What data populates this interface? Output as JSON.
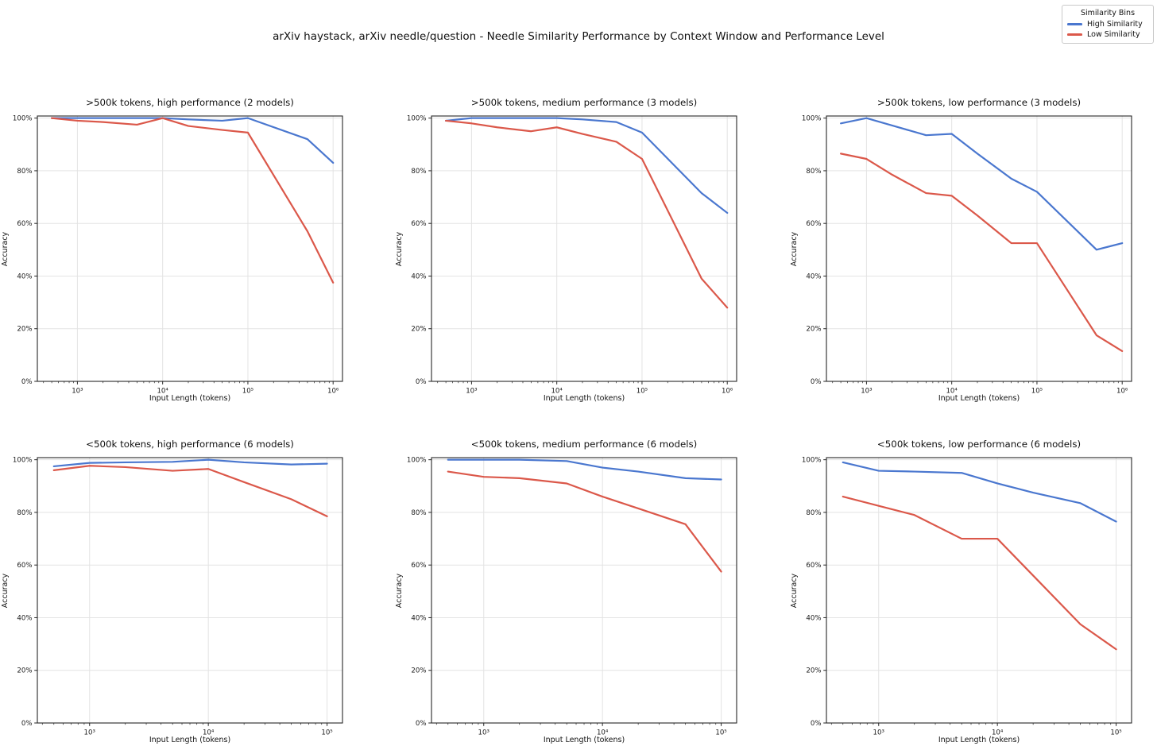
{
  "header": {
    "title": "arXiv haystack, arXiv needle/question - Needle Similarity Performance by Context Window and Performance Level"
  },
  "legend": {
    "title": "Similarity Bins",
    "position": "top-right",
    "entries": [
      {
        "label": "High Similarity",
        "color": "#4A77CF"
      },
      {
        "label": "Low Similarity",
        "color": "#DB584A"
      }
    ]
  },
  "colors": {
    "grid": "#e3e3e3",
    "spine": "#262626",
    "text": "#1a1a1a",
    "series": {
      "High Similarity": "#4A77CF",
      "Low Similarity": "#DB584A"
    }
  },
  "axes": {
    "yticks": [
      {
        "v": 0,
        "label": "0%"
      },
      {
        "v": 20,
        "label": "20%"
      },
      {
        "v": 40,
        "label": "40%"
      },
      {
        "v": 60,
        "label": "60%"
      },
      {
        "v": 80,
        "label": "80%"
      },
      {
        "v": 100,
        "label": "100%"
      }
    ],
    "xtick_sets": {
      "wide": [
        {
          "v": 1000,
          "label": "10³"
        },
        {
          "v": 10000,
          "label": "10⁴"
        },
        {
          "v": 100000,
          "label": "10⁵"
        },
        {
          "v": 1000000,
          "label": "10⁶"
        }
      ],
      "narrow": [
        {
          "v": 1000,
          "label": "10³"
        },
        {
          "v": 10000,
          "label": "10⁴"
        },
        {
          "v": 100000,
          "label": "10⁵"
        }
      ]
    }
  },
  "chart_data": [
    {
      "type": "line",
      "title": ">500k tokens, high performance (2 models)",
      "xlabel": "Input Length (tokens)",
      "ylabel": "Accuracy",
      "x": [
        500,
        1000,
        2000,
        5000,
        10000,
        20000,
        50000,
        100000,
        500000,
        1000000
      ],
      "series": [
        {
          "name": "High Similarity",
          "values": [
            100,
            100,
            100,
            100,
            100,
            99.5,
            99,
            100,
            92,
            83
          ]
        },
        {
          "name": "Low Similarity",
          "values": [
            100,
            99,
            98.5,
            97.5,
            100,
            97,
            95.5,
            94.5,
            57,
            37.5
          ]
        }
      ],
      "xscale": "log",
      "xlim_log": [
        2.53,
        6.11
      ],
      "ylim": [
        0,
        100.8
      ],
      "xticks": "wide",
      "grid": true
    },
    {
      "type": "line",
      "title": ">500k tokens, medium performance (3 models)",
      "xlabel": "Input Length (tokens)",
      "ylabel": "Accuracy",
      "x": [
        500,
        1000,
        2000,
        5000,
        10000,
        20000,
        50000,
        100000,
        500000,
        1000000
      ],
      "series": [
        {
          "name": "High Similarity",
          "values": [
            99,
            100,
            100,
            100,
            100,
            99.5,
            98.5,
            94.5,
            71.5,
            64
          ]
        },
        {
          "name": "Low Similarity",
          "values": [
            99,
            98,
            96.5,
            95,
            96.5,
            94,
            91,
            84.5,
            39,
            28
          ]
        }
      ],
      "xscale": "log",
      "xlim_log": [
        2.53,
        6.11
      ],
      "ylim": [
        0,
        100.8
      ],
      "xticks": "wide",
      "grid": true
    },
    {
      "type": "line",
      "title": ">500k tokens, low performance (3 models)",
      "xlabel": "Input Length (tokens)",
      "ylabel": "Accuracy",
      "x": [
        500,
        1000,
        2000,
        5000,
        10000,
        20000,
        50000,
        100000,
        500000,
        1000000
      ],
      "series": [
        {
          "name": "High Similarity",
          "values": [
            98,
            100,
            97.2,
            93.5,
            94,
            86.5,
            77,
            72,
            50,
            52.5
          ]
        },
        {
          "name": "Low Similarity",
          "values": [
            86.5,
            84.5,
            78.5,
            71.5,
            70.5,
            63,
            52.5,
            52.5,
            17.5,
            11.5
          ]
        }
      ],
      "xscale": "log",
      "xlim_log": [
        2.53,
        6.11
      ],
      "ylim": [
        0,
        100.8
      ],
      "xticks": "wide",
      "grid": true
    },
    {
      "type": "line",
      "title": "<500k tokens, high performance (6 models)",
      "xlabel": "Input Length (tokens)",
      "ylabel": "Accuracy",
      "x": [
        500,
        1000,
        2000,
        5000,
        10000,
        20000,
        50000,
        100000
      ],
      "series": [
        {
          "name": "High Similarity",
          "values": [
            97.5,
            98.8,
            99,
            99.2,
            100,
            99,
            98.2,
            98.5
          ]
        },
        {
          "name": "Low Similarity",
          "values": [
            96,
            97.7,
            97.2,
            95.8,
            96.5,
            91.5,
            85,
            78.5
          ]
        }
      ],
      "xscale": "log",
      "xlim_log": [
        2.56,
        5.13
      ],
      "ylim": [
        0,
        100.8
      ],
      "xticks": "narrow",
      "grid": true
    },
    {
      "type": "line",
      "title": "<500k tokens, medium performance (6 models)",
      "xlabel": "Input Length (tokens)",
      "ylabel": "Accuracy",
      "x": [
        500,
        1000,
        2000,
        5000,
        10000,
        20000,
        50000,
        100000
      ],
      "series": [
        {
          "name": "High Similarity",
          "values": [
            100,
            100,
            100,
            99.5,
            97,
            95.5,
            93,
            92.5
          ]
        },
        {
          "name": "Low Similarity",
          "values": [
            95.5,
            93.5,
            93,
            91,
            86,
            81.5,
            75.5,
            57.5
          ]
        }
      ],
      "xscale": "log",
      "xlim_log": [
        2.56,
        5.13
      ],
      "ylim": [
        0,
        100.8
      ],
      "xticks": "narrow",
      "grid": true
    },
    {
      "type": "line",
      "title": "<500k tokens, low performance (6 models)",
      "xlabel": "Input Length (tokens)",
      "ylabel": "Accuracy",
      "x": [
        500,
        1000,
        2000,
        5000,
        10000,
        20000,
        50000,
        100000
      ],
      "series": [
        {
          "name": "High Similarity",
          "values": [
            99,
            95.8,
            95.5,
            95,
            91,
            87.5,
            83.5,
            76.5
          ]
        },
        {
          "name": "Low Similarity",
          "values": [
            86,
            82.5,
            79,
            70,
            70,
            56,
            37.5,
            28
          ]
        }
      ],
      "xscale": "log",
      "xlim_log": [
        2.56,
        5.13
      ],
      "ylim": [
        0,
        100.8
      ],
      "xticks": "narrow",
      "grid": true
    }
  ]
}
